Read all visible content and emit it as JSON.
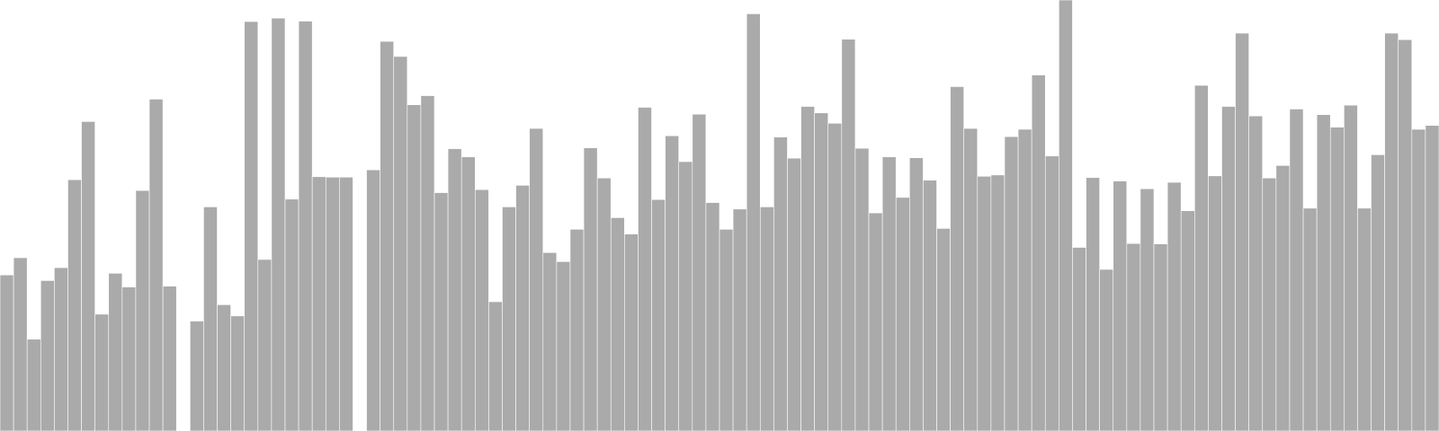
{
  "chart_data": {
    "type": "bar",
    "title": "",
    "xlabel": "",
    "ylabel": "",
    "axes_visible": false,
    "grid": false,
    "legend": "none",
    "ylim": [
      0,
      100
    ],
    "bar_color": "#aaaaaa",
    "bar_edge_color": "#ffffff",
    "background_color": "#ffffff",
    "values": [
      36.2,
      40.2,
      21.3,
      34.9,
      37.9,
      58.3,
      71.8,
      27.1,
      36.6,
      33.4,
      55.8,
      77.0,
      33.6,
      0.0,
      25.5,
      52.0,
      29.3,
      26.7,
      95.0,
      39.8,
      95.8,
      53.8,
      95.1,
      59.0,
      58.9,
      58.9,
      0.0,
      60.6,
      90.4,
      86.9,
      75.7,
      77.8,
      55.3,
      65.5,
      63.6,
      56.0,
      30.0,
      52.0,
      57.0,
      70.2,
      41.4,
      39.3,
      46.8,
      65.7,
      58.7,
      49.5,
      45.7,
      75.1,
      53.7,
      68.5,
      62.5,
      73.5,
      53.0,
      46.8,
      51.5,
      96.8,
      52.0,
      68.2,
      63.3,
      75.3,
      73.8,
      71.4,
      90.9,
      65.6,
      50.6,
      63.6,
      54.2,
      63.4,
      58.2,
      47.0,
      79.9,
      70.2,
      59.1,
      59.4,
      68.3,
      70.0,
      82.6,
      63.8,
      100.0,
      42.6,
      58.8,
      37.5,
      58.0,
      43.5,
      56.2,
      43.4,
      57.7,
      51.1,
      80.2,
      59.2,
      75.3,
      92.3,
      73.1,
      58.7,
      61.6,
      74.7,
      51.7,
      73.4,
      70.5,
      75.6,
      51.7,
      64.1,
      92.3,
      90.8,
      70.0,
      70.9
    ]
  }
}
